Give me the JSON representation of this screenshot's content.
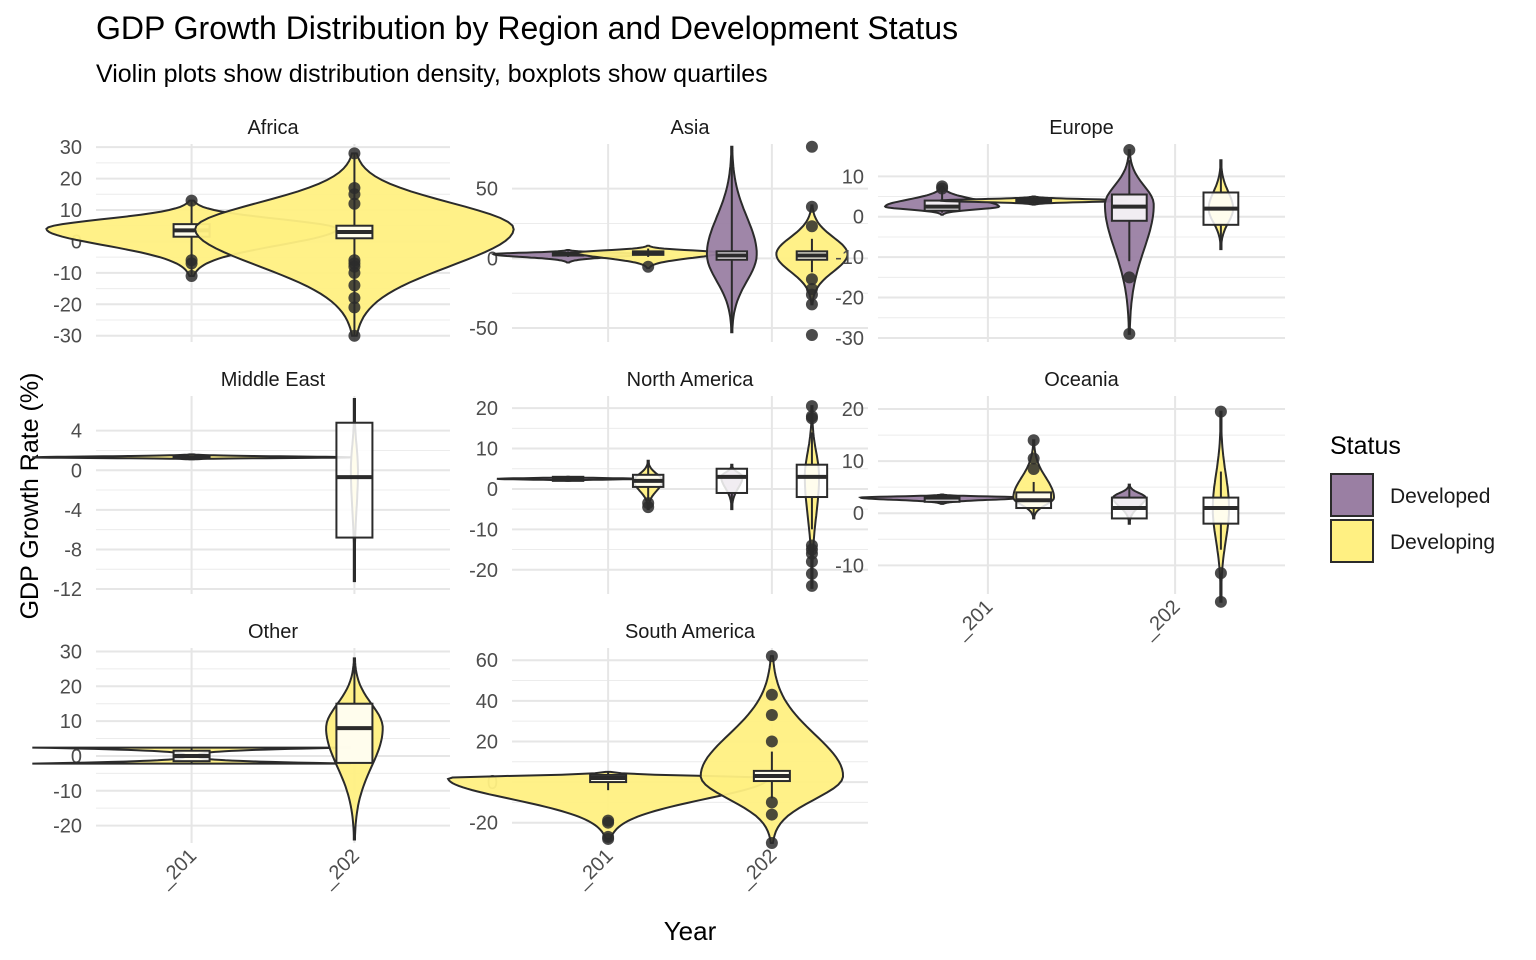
{
  "chart_data": {
    "type": "violin",
    "title": "GDP Growth Distribution by Region and Development Status",
    "subtitle": "Violin plots show distribution density, boxplots show quartiles",
    "xlabel": "Year",
    "ylabel": "GDP Growth Rate (%)",
    "x_categories": [
      "_201",
      "_202"
    ],
    "legend": {
      "title": "Status",
      "placement": "right",
      "entries": [
        {
          "name": "Developed",
          "color": "#9A7FA3"
        },
        {
          "name": "Developing",
          "color": "#FFF082"
        }
      ]
    },
    "facets": [
      {
        "name": "Africa",
        "ylim": [
          -32,
          31
        ],
        "yticks": [
          -30,
          -20,
          -10,
          0,
          10,
          20,
          30
        ],
        "groups": [
          {
            "year": "_201",
            "status": "Developing",
            "min": -11,
            "q1": 1.5,
            "median": 3.5,
            "q3": 5.5,
            "max": 13,
            "outliers": [
              -11,
              -7,
              -6,
              13
            ],
            "violin": {
              "low": -11,
              "high": 13,
              "peak": 4,
              "halfwidth": 0.41
            }
          },
          {
            "year": "_202",
            "status": "Developing",
            "min": -30,
            "q1": 1,
            "median": 3,
            "q3": 5,
            "max": 28,
            "outliers": [
              -30,
              -21,
              -18,
              -14,
              -10,
              -8,
              -7,
              -6,
              12,
              15,
              17,
              28
            ],
            "violin": {
              "low": -30,
              "high": 28,
              "peak": 4,
              "halfwidth": 0.45
            }
          }
        ]
      },
      {
        "name": "Asia",
        "ylim": [
          -60,
          82
        ],
        "yticks": [
          -50,
          0,
          50
        ],
        "groups": [
          {
            "year": "_201",
            "status": "Developed",
            "min": 1,
            "q1": 2,
            "median": 3,
            "q3": 4,
            "max": 5,
            "outliers": [],
            "violin": {
              "low": -3,
              "high": 6,
              "peak": 3,
              "halfwidth": 0.21
            }
          },
          {
            "year": "_201",
            "status": "Developing",
            "min": 1,
            "q1": 2.5,
            "median": 3.5,
            "q3": 5,
            "max": 7,
            "outliers": [
              -6
            ],
            "violin": {
              "low": -7,
              "high": 9,
              "peak": 4,
              "halfwidth": 0.2
            }
          },
          {
            "year": "_202",
            "status": "Developed",
            "min": -53,
            "q1": -1,
            "median": 2,
            "q3": 5,
            "max": 80,
            "outliers": [],
            "violin": {
              "low": -53,
              "high": 80,
              "peak": 3,
              "halfwidth": 0.07
            }
          },
          {
            "year": "_202",
            "status": "Developing",
            "min": -10,
            "q1": -1,
            "median": 2,
            "q3": 5,
            "max": 14,
            "outliers": [
              -55,
              -33,
              -26,
              -22,
              -15,
              23,
              37,
              80
            ],
            "violin": {
              "low": -33,
              "high": 38,
              "peak": 3,
              "halfwidth": 0.1
            }
          }
        ]
      },
      {
        "name": "Europe",
        "ylim": [
          -31,
          18
        ],
        "yticks": [
          -30,
          -20,
          -10,
          0,
          10
        ],
        "groups": [
          {
            "year": "_201",
            "status": "Developed",
            "min": 1,
            "q1": 1.5,
            "median": 2.5,
            "q3": 4,
            "max": 7,
            "outliers": [
              7,
              7.5
            ],
            "violin": {
              "low": 0.5,
              "high": 7.5,
              "peak": 2.5,
              "halfwidth": 0.14
            }
          },
          {
            "year": "_201",
            "status": "Developing",
            "min": 3,
            "q1": 3.5,
            "median": 4,
            "q3": 4.5,
            "max": 5,
            "outliers": [],
            "violin": {
              "low": 3,
              "high": 5,
              "peak": 4,
              "halfwidth": 0.23
            }
          },
          {
            "year": "_202",
            "status": "Developed",
            "min": -11,
            "q1": -1,
            "median": 2.5,
            "q3": 5.5,
            "max": 14,
            "outliers": [
              -29,
              -15,
              16.5
            ],
            "violin": {
              "low": -29,
              "high": 16.5,
              "peak": 3,
              "halfwidth": 0.06
            }
          },
          {
            "year": "_202",
            "status": "Developing",
            "min": -8,
            "q1": -2,
            "median": 2,
            "q3": 6,
            "max": 14,
            "outliers": [],
            "violin": {
              "low": -8,
              "high": 14,
              "peak": 2,
              "halfwidth": 0.03
            }
          }
        ]
      },
      {
        "name": "Middle East",
        "ylim": [
          -12.5,
          7.5
        ],
        "yticks": [
          -12,
          -8,
          -4,
          0,
          4
        ],
        "groups": [
          {
            "year": "_201",
            "status": "Developing",
            "min": 1.3,
            "q1": 1.3,
            "median": 1.3,
            "q3": 1.4,
            "max": 1.4,
            "outliers": [],
            "violin": {
              "low": 1.1,
              "high": 1.6,
              "peak": 1.3,
              "halfwidth": 0.45
            }
          },
          {
            "year": "_202",
            "status": "Developing",
            "min": -11.2,
            "q1": -6.8,
            "median": -0.7,
            "q3": 4.8,
            "max": 7.2,
            "outliers": [],
            "violin": {
              "low": -11.2,
              "high": 7.2,
              "peak": 0,
              "halfwidth": 0.01
            }
          }
        ]
      },
      {
        "name": "North America",
        "ylim": [
          -26,
          23
        ],
        "yticks": [
          -20,
          -10,
          0,
          10,
          20
        ],
        "groups": [
          {
            "year": "_201",
            "status": "Developed",
            "min": 2,
            "q1": 2,
            "median": 2.5,
            "q3": 3,
            "max": 3,
            "outliers": [],
            "violin": {
              "low": 2,
              "high": 3,
              "peak": 2.5,
              "halfwidth": 0.2
            }
          },
          {
            "year": "_201",
            "status": "Developing",
            "min": -3,
            "q1": 0.5,
            "median": 2,
            "q3": 3.5,
            "max": 7,
            "outliers": [
              -4.5,
              -3.5
            ],
            "violin": {
              "low": -5,
              "high": 7,
              "peak": 2,
              "halfwidth": 0.04
            }
          },
          {
            "year": "_202",
            "status": "Developed",
            "min": -5,
            "q1": -1,
            "median": 3,
            "q3": 5,
            "max": 6,
            "outliers": [],
            "violin": {
              "low": -5,
              "high": 6,
              "peak": 3,
              "halfwidth": 0.03
            }
          },
          {
            "year": "_202",
            "status": "Developing",
            "min": -10,
            "q1": -2,
            "median": 3,
            "q3": 6,
            "max": 14,
            "outliers": [
              -24,
              -21,
              -18,
              -16,
              -15,
              -14,
              17.5,
              18,
              20.5
            ],
            "violin": {
              "low": -24.5,
              "high": 20.5,
              "peak": 3,
              "halfwidth": 0.02
            }
          }
        ]
      },
      {
        "name": "Oceania",
        "ylim": [
          -15.5,
          22.5
        ],
        "yticks": [
          -10,
          0,
          10,
          20
        ],
        "groups": [
          {
            "year": "_201",
            "status": "Developed",
            "min": 2,
            "q1": 2.2,
            "median": 3,
            "q3": 3.3,
            "max": 3.4,
            "outliers": [],
            "violin": {
              "low": 1.8,
              "high": 3.6,
              "peak": 3,
              "halfwidth": 0.2
            }
          },
          {
            "year": "_201",
            "status": "Developing",
            "min": -1,
            "q1": 1,
            "median": 2.5,
            "q3": 4,
            "max": 6,
            "outliers": [
              8.5,
              10.5,
              14
            ],
            "violin": {
              "low": -1,
              "high": 14,
              "peak": 3,
              "halfwidth": 0.05
            }
          },
          {
            "year": "_202",
            "status": "Developed",
            "min": -2,
            "q1": -1,
            "median": 1,
            "q3": 3,
            "max": 5.5,
            "outliers": [],
            "violin": {
              "low": -2,
              "high": 5.5,
              "peak": 3,
              "halfwidth": 0.04
            }
          },
          {
            "year": "_202",
            "status": "Developing",
            "min": -7,
            "q1": -2,
            "median": 1,
            "q3": 3,
            "max": 8,
            "outliers": [
              -17,
              -11.5,
              19.5
            ],
            "violin": {
              "low": -17,
              "high": 19.5,
              "peak": 1,
              "halfwidth": 0.02
            }
          }
        ]
      },
      {
        "name": "Other",
        "ylim": [
          -25,
          31
        ],
        "yticks": [
          -20,
          -10,
          0,
          10,
          20,
          30
        ],
        "groups": [
          {
            "year": "_201",
            "status": "Developing",
            "min": -2.2,
            "q1": -1.5,
            "median": 0,
            "q3": 1.5,
            "max": 2.2,
            "outliers": [],
            "violin": {
              "low": -2.2,
              "high": 2.4,
              "peak": 0,
              "halfwidth": 0.45,
              "waist": 0.04
            }
          },
          {
            "year": "_202",
            "status": "Developing",
            "min": -2,
            "q1": -2,
            "median": 8,
            "q3": 15,
            "max": 28,
            "outliers": [],
            "violin": {
              "low": -24,
              "high": 28,
              "peak": 8,
              "halfwidth": 0.08
            }
          }
        ]
      },
      {
        "name": "South America",
        "ylim": [
          -30,
          66
        ],
        "yticks": [
          -20,
          0,
          20,
          40,
          60
        ],
        "groups": [
          {
            "year": "_201",
            "status": "Developing",
            "min": -4,
            "q1": 0,
            "median": 2,
            "q3": 3.5,
            "max": 5,
            "outliers": [
              -28,
              -27,
              -20,
              -19
            ],
            "violin": {
              "low": -28,
              "high": 5,
              "peak": 2,
              "halfwidth": 0.45
            }
          },
          {
            "year": "_202",
            "status": "Developing",
            "min": -8,
            "q1": 0.5,
            "median": 3,
            "q3": 5.5,
            "max": 15,
            "outliers": [
              -30,
              -16,
              -10,
              20,
              33,
              43,
              62
            ],
            "violin": {
              "low": -30,
              "high": 62,
              "peak": 3,
              "halfwidth": 0.2
            }
          }
        ]
      }
    ]
  }
}
